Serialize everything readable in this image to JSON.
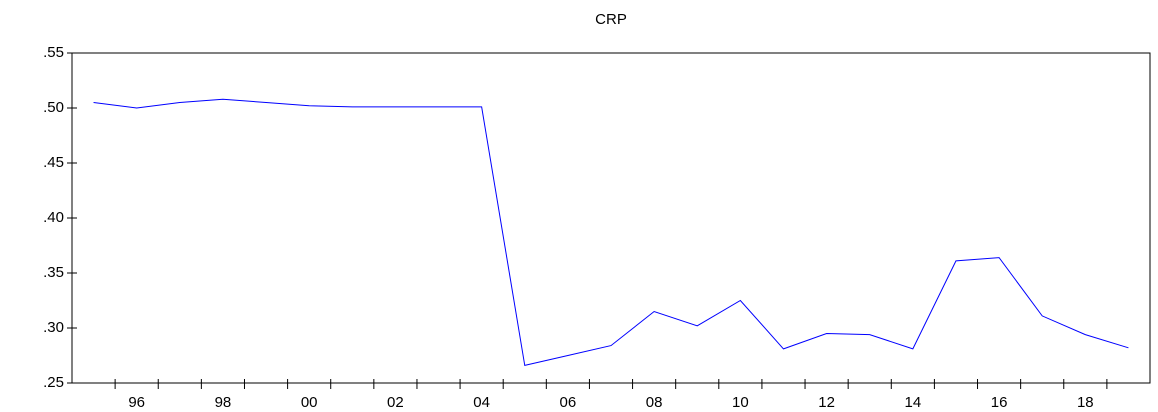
{
  "chart_data": {
    "type": "line",
    "title": "CRP",
    "categories": [
      null,
      "96",
      null,
      "98",
      null,
      "00",
      null,
      "02",
      null,
      "04",
      null,
      "06",
      null,
      "08",
      null,
      "10",
      null,
      "12",
      null,
      "14",
      null,
      "16",
      null,
      "18",
      null
    ],
    "series": [
      {
        "name": "CRP",
        "color": "#0000ff",
        "values": [
          0.505,
          0.5,
          0.505,
          0.508,
          0.505,
          0.502,
          0.501,
          0.501,
          0.501,
          0.501,
          0.266,
          0.275,
          0.284,
          0.315,
          0.302,
          0.325,
          0.281,
          0.295,
          0.294,
          0.281,
          0.361,
          0.364,
          0.311,
          0.294,
          0.282
        ]
      }
    ],
    "ylim": [
      0.25,
      0.55
    ],
    "yticks": [
      {
        "value": 0.25,
        "label": ".25"
      },
      {
        "value": 0.3,
        "label": ".30"
      },
      {
        "value": 0.35,
        "label": ".35"
      },
      {
        "value": 0.4,
        "label": ".40"
      },
      {
        "value": 0.45,
        "label": ".45"
      },
      {
        "value": 0.5,
        "label": ".50"
      },
      {
        "value": 0.55,
        "label": ".55"
      }
    ],
    "grid": false
  }
}
